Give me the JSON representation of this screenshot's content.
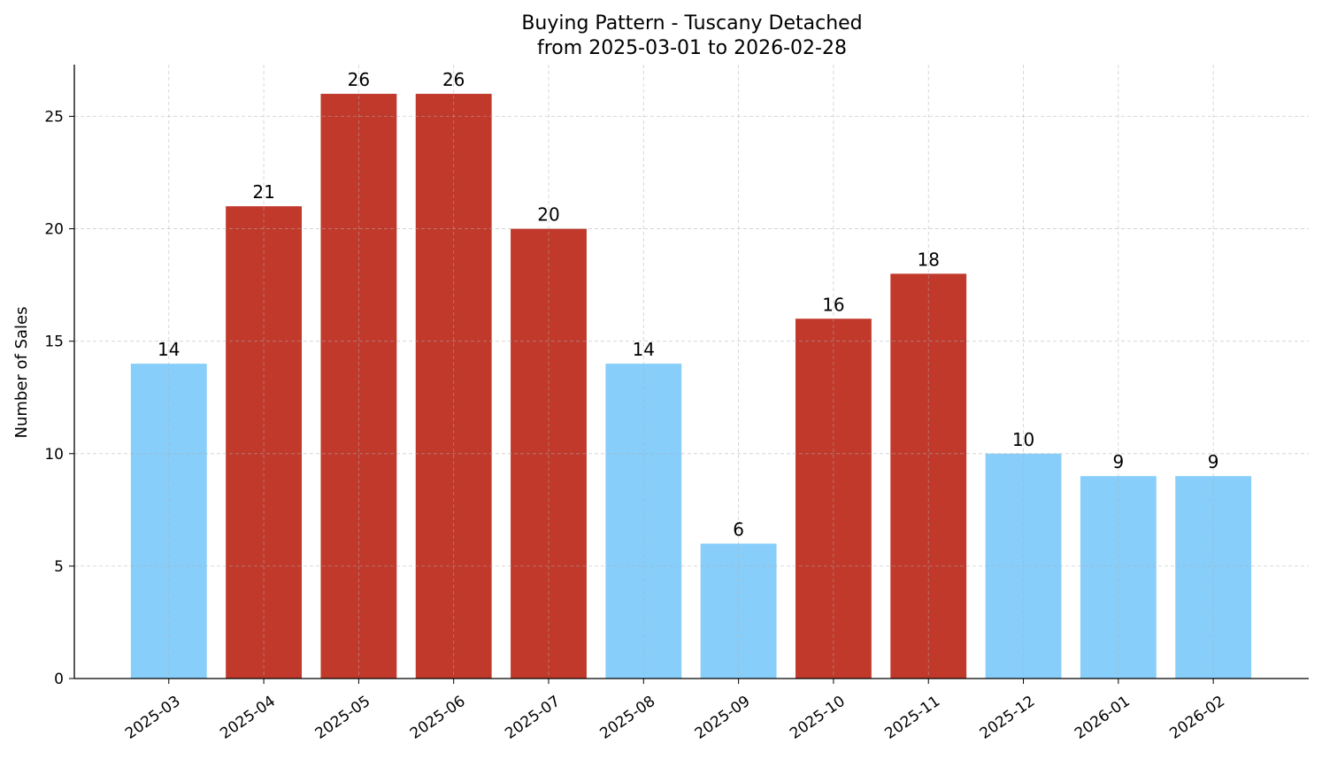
{
  "chart_data": {
    "type": "bar",
    "title": "Buying Pattern - Tuscany Detached",
    "subtitle": "from 2025-03-01 to 2026-02-28",
    "xlabel": "",
    "ylabel": "Number of Sales",
    "categories": [
      "2025-03",
      "2025-04",
      "2025-05",
      "2025-06",
      "2025-07",
      "2025-08",
      "2025-09",
      "2025-10",
      "2025-11",
      "2025-12",
      "2026-01",
      "2026-02"
    ],
    "values": [
      14,
      21,
      26,
      26,
      20,
      14,
      6,
      16,
      18,
      10,
      9,
      9
    ],
    "bar_colors": [
      "#87cefa",
      "#c0392b",
      "#c0392b",
      "#c0392b",
      "#c0392b",
      "#87cefa",
      "#87cefa",
      "#c0392b",
      "#c0392b",
      "#87cefa",
      "#87cefa",
      "#87cefa"
    ],
    "ylim": [
      0,
      27.3
    ],
    "yticks": [
      0,
      5,
      10,
      15,
      20,
      25
    ],
    "grid": true,
    "data_labels": true
  }
}
